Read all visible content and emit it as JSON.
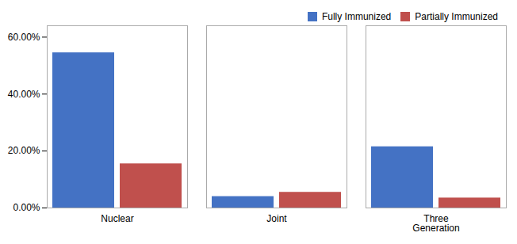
{
  "chart_data": {
    "type": "bar",
    "categories": [
      "Nuclear",
      "Joint",
      "Three\nGeneration"
    ],
    "series": [
      {
        "name": "Fully Immunized",
        "color": "#4472C4",
        "values": [
          0.545,
          0.04,
          0.215
        ]
      },
      {
        "name": "Partially Immunized",
        "color": "#C0504D",
        "values": [
          0.155,
          0.055,
          0.035
        ]
      }
    ],
    "ylim": [
      0.0,
      0.64
    ],
    "yticks": [
      {
        "value": 0.0,
        "label": "0.00%"
      },
      {
        "value": 0.2,
        "label": "20.00%"
      },
      {
        "value": 0.4,
        "label": "40.00%"
      },
      {
        "value": 0.6,
        "label": "60.00%"
      }
    ],
    "grid": false,
    "legend": "upper right"
  }
}
